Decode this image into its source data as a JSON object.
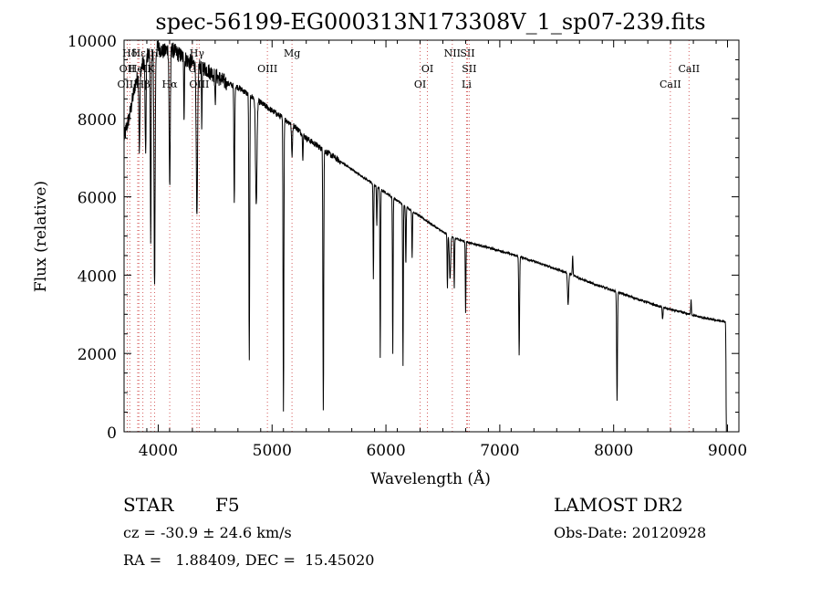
{
  "chart_data": {
    "type": "line",
    "title": "spec-56199-EG000313N173308V_1_sp07-239.fits",
    "xlabel": "Wavelength (Å)",
    "ylabel": "Flux (relative)",
    "xlim": [
      3700,
      9100
    ],
    "ylim": [
      0,
      10000
    ],
    "xticks": [
      4000,
      5000,
      6000,
      7000,
      8000,
      9000
    ],
    "yticks": [
      0,
      2000,
      4000,
      6000,
      8000,
      10000
    ],
    "continuum": {
      "x": [
        3700,
        3750,
        3800,
        3850,
        3900,
        3950,
        4000,
        4050,
        4100,
        4200,
        4300,
        4400,
        4500,
        4600,
        4700,
        4800,
        4900,
        5000,
        5100,
        5200,
        5300,
        5400,
        5500,
        5600,
        5700,
        5800,
        5900,
        6000,
        6100,
        6200,
        6300,
        6400,
        6500,
        6600,
        6700,
        6800,
        6900,
        7000,
        7200,
        7400,
        7600,
        7800,
        8000,
        8200,
        8400,
        8600,
        8800,
        8990
      ],
      "y": [
        7500,
        8100,
        8900,
        9300,
        9600,
        9700,
        9800,
        9700,
        9800,
        9600,
        9400,
        9300,
        9100,
        8900,
        8800,
        8600,
        8400,
        8200,
        8000,
        7800,
        7500,
        7300,
        7100,
        6900,
        6700,
        6500,
        6300,
        6100,
        5900,
        5700,
        5500,
        5300,
        5100,
        4950,
        4850,
        4780,
        4700,
        4620,
        4450,
        4250,
        4050,
        3800,
        3600,
        3400,
        3200,
        3050,
        2900,
        2800
      ]
    },
    "absorption_features": [
      {
        "x": 3835,
        "depth": 2000,
        "width": 6
      },
      {
        "x": 3889,
        "depth": 2500,
        "width": 6
      },
      {
        "x": 3934,
        "depth": 5000,
        "width": 5
      },
      {
        "x": 3968,
        "depth": 6000,
        "width": 7
      },
      {
        "x": 4101,
        "depth": 3500,
        "width": 7
      },
      {
        "x": 4227,
        "depth": 1500,
        "width": 4
      },
      {
        "x": 4340,
        "depth": 4000,
        "width": 8
      },
      {
        "x": 4383,
        "depth": 1500,
        "width": 4
      },
      {
        "x": 4500,
        "depth": 800,
        "width": 4
      },
      {
        "x": 4668,
        "depth": 3000,
        "width": 5
      },
      {
        "x": 4800,
        "depth": 6800,
        "width": 5
      },
      {
        "x": 4861,
        "depth": 2700,
        "width": 9
      },
      {
        "x": 5100,
        "depth": 7400,
        "width": 5
      },
      {
        "x": 5175,
        "depth": 800,
        "width": 6
      },
      {
        "x": 5270,
        "depth": 600,
        "width": 4
      },
      {
        "x": 5450,
        "depth": 6600,
        "width": 5
      },
      {
        "x": 5890,
        "depth": 2400,
        "width": 4
      },
      {
        "x": 5920,
        "depth": 1000,
        "width": 4
      },
      {
        "x": 5950,
        "depth": 4300,
        "width": 4
      },
      {
        "x": 6060,
        "depth": 4000,
        "width": 4
      },
      {
        "x": 6150,
        "depth": 4100,
        "width": 4
      },
      {
        "x": 6175,
        "depth": 1500,
        "width": 4
      },
      {
        "x": 6230,
        "depth": 1200,
        "width": 4
      },
      {
        "x": 6540,
        "depth": 1400,
        "width": 4
      },
      {
        "x": 6563,
        "depth": 1100,
        "width": 8
      },
      {
        "x": 6600,
        "depth": 1300,
        "width": 4
      },
      {
        "x": 6700,
        "depth": 1800,
        "width": 4
      },
      {
        "x": 7170,
        "depth": 2500,
        "width": 5
      },
      {
        "x": 7600,
        "depth": 800,
        "width": 7
      },
      {
        "x": 8030,
        "depth": 2800,
        "width": 5
      },
      {
        "x": 8430,
        "depth": 300,
        "width": 5
      },
      {
        "x": 8990,
        "depth": 2800,
        "width": 4
      }
    ],
    "emission_features": [
      {
        "x": 7640,
        "height": 500,
        "width": 4
      },
      {
        "x": 8680,
        "height": 400,
        "width": 4
      }
    ],
    "line_markers": [
      {
        "x": 3750,
        "label": "Hδ",
        "row": 0
      },
      {
        "x": 3728,
        "label": "OII",
        "row": 1
      },
      {
        "x": 3728,
        "label": "OIII",
        "row": 2
      },
      {
        "x": 3830,
        "label": "Hε",
        "row": 0
      },
      {
        "x": 3820,
        "label": "HeI",
        "row": 1
      },
      {
        "x": 3865,
        "label": "Hβ",
        "row": 2
      },
      {
        "x": 3935,
        "label": "K",
        "row": 1
      },
      {
        "x": 3968,
        "label": "H",
        "row": 0
      },
      {
        "x": 4101,
        "label": "Hα",
        "row": 2
      },
      {
        "x": 4300,
        "label": "G",
        "row": 1
      },
      {
        "x": 4340,
        "label": "Hγ",
        "row": 0
      },
      {
        "x": 4360,
        "label": "OIII",
        "row": 2
      },
      {
        "x": 4959,
        "label": "OIII",
        "row": 1
      },
      {
        "x": 5175,
        "label": "Mg",
        "row": 0
      },
      {
        "x": 6300,
        "label": "OI",
        "row": 2
      },
      {
        "x": 6364,
        "label": "OI",
        "row": 1
      },
      {
        "x": 6583,
        "label": "NII",
        "row": 0
      },
      {
        "x": 6716,
        "label": "SII",
        "row": 0
      },
      {
        "x": 6731,
        "label": "SII",
        "row": 1
      },
      {
        "x": 6708,
        "label": "Li",
        "row": 2
      },
      {
        "x": 8498,
        "label": "CaII",
        "row": 2
      },
      {
        "x": 8662,
        "label": "CaII",
        "row": 1
      }
    ],
    "grid": false,
    "legend": "none"
  },
  "info": {
    "object_class": "STAR",
    "subclass": "F5",
    "survey": "LAMOST DR2",
    "redshift": "cz = -30.9 ± 24.6 km/s",
    "obs_date": "Obs-Date: 20120928",
    "coords": "RA =   1.88409, DEC =  15.45020"
  },
  "colors": {
    "spectrum": "#000000",
    "marker_line": "#d45a5a",
    "background": "#ffffff"
  }
}
